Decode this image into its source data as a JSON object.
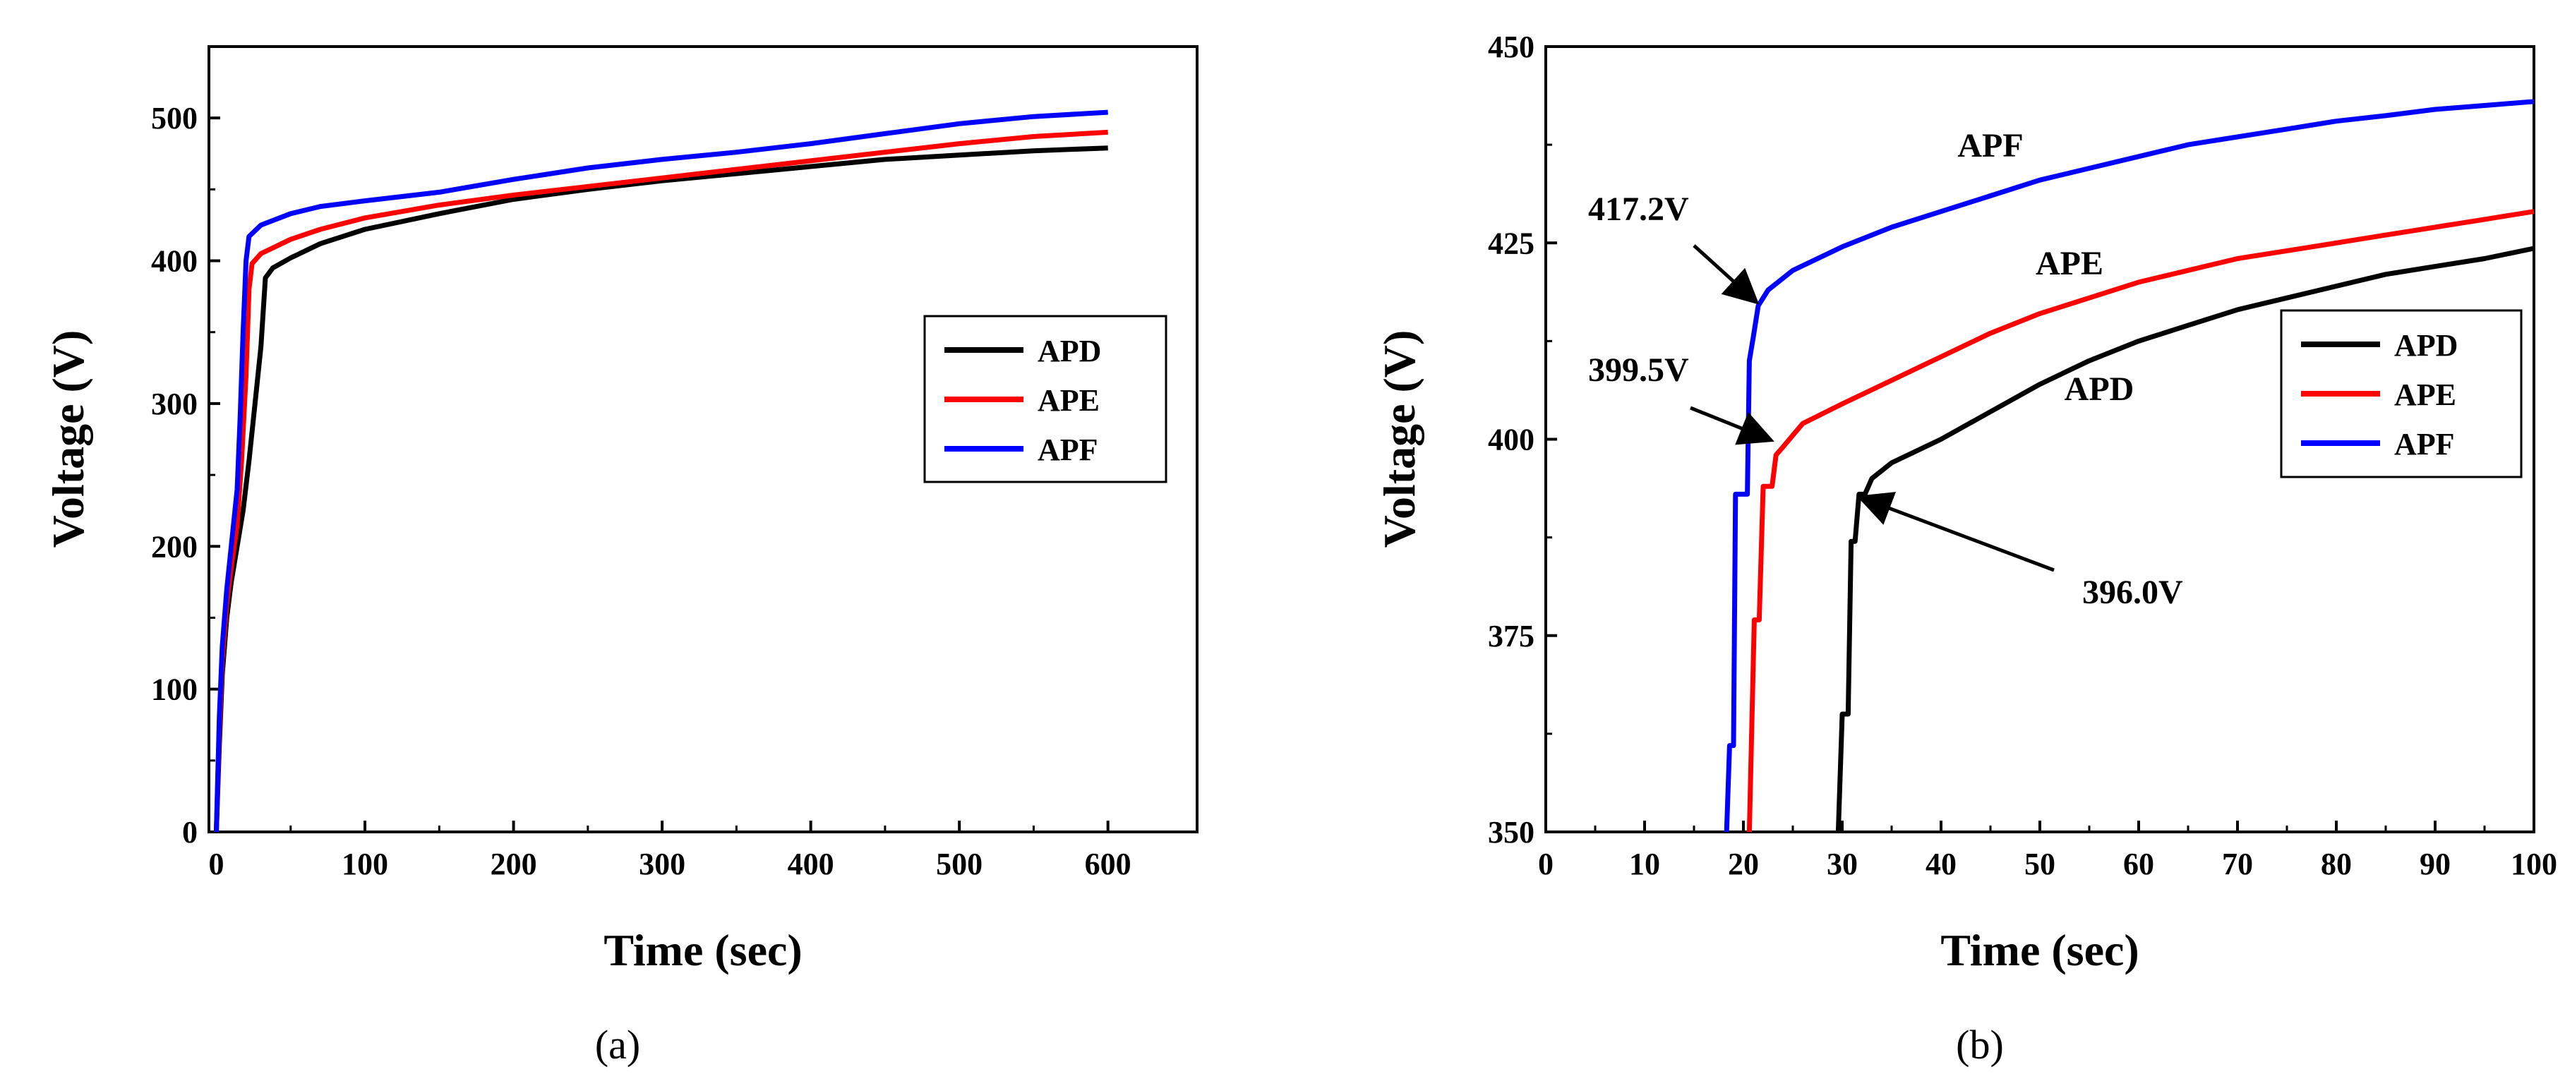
{
  "chart_data": [
    {
      "id": "a",
      "type": "line",
      "panel_label": "(a)",
      "title": "",
      "xlabel": "Time (sec)",
      "ylabel": "Voltage (V)",
      "xlim": [
        -5,
        660
      ],
      "ylim": [
        0,
        550
      ],
      "xticks": [
        0,
        100,
        200,
        300,
        400,
        500,
        600
      ],
      "yticks": [
        0,
        100,
        200,
        300,
        400,
        500
      ],
      "legend_position": "right-middle",
      "series": [
        {
          "name": "APD",
          "color": "#000000",
          "points": [
            [
              0,
              0
            ],
            [
              2,
              60
            ],
            [
              4,
              110
            ],
            [
              7,
              150
            ],
            [
              10,
              175
            ],
            [
              14,
              200
            ],
            [
              18,
              225
            ],
            [
              22,
              260
            ],
            [
              26,
              300
            ],
            [
              30,
              340
            ],
            [
              33,
              388
            ],
            [
              38,
              395
            ],
            [
              50,
              402
            ],
            [
              70,
              412
            ],
            [
              100,
              422
            ],
            [
              150,
              433
            ],
            [
              200,
              443
            ],
            [
              250,
              450
            ],
            [
              300,
              456
            ],
            [
              350,
              461
            ],
            [
              400,
              466
            ],
            [
              450,
              471
            ],
            [
              500,
              474
            ],
            [
              550,
              477
            ],
            [
              600,
              479
            ]
          ]
        },
        {
          "name": "APE",
          "color": "#ff0000",
          "points": [
            [
              0,
              0
            ],
            [
              2,
              70
            ],
            [
              4,
              120
            ],
            [
              7,
              160
            ],
            [
              10,
              185
            ],
            [
              14,
              215
            ],
            [
              17,
              260
            ],
            [
              20,
              320
            ],
            [
              22,
              380
            ],
            [
              24,
              398
            ],
            [
              30,
              405
            ],
            [
              50,
              415
            ],
            [
              70,
              422
            ],
            [
              100,
              430
            ],
            [
              150,
              439
            ],
            [
              200,
              446
            ],
            [
              250,
              452
            ],
            [
              300,
              458
            ],
            [
              350,
              464
            ],
            [
              400,
              470
            ],
            [
              450,
              476
            ],
            [
              500,
              482
            ],
            [
              550,
              487
            ],
            [
              600,
              490
            ]
          ]
        },
        {
          "name": "APF",
          "color": "#0000ff",
          "points": [
            [
              0,
              0
            ],
            [
              2,
              80
            ],
            [
              4,
              130
            ],
            [
              7,
              170
            ],
            [
              10,
              200
            ],
            [
              14,
              240
            ],
            [
              16,
              290
            ],
            [
              18,
              350
            ],
            [
              20,
              400
            ],
            [
              22,
              417
            ],
            [
              30,
              425
            ],
            [
              50,
              433
            ],
            [
              70,
              438
            ],
            [
              100,
              442
            ],
            [
              150,
              448
            ],
            [
              200,
              457
            ],
            [
              250,
              465
            ],
            [
              300,
              471
            ],
            [
              350,
              476
            ],
            [
              400,
              482
            ],
            [
              450,
              489
            ],
            [
              500,
              496
            ],
            [
              550,
              501
            ],
            [
              600,
              504
            ]
          ]
        }
      ]
    },
    {
      "id": "b",
      "type": "line",
      "panel_label": "(b)",
      "title": "",
      "xlabel": "Time (sec)",
      "ylabel": "Voltage (V)",
      "xlim": [
        0,
        100
      ],
      "ylim": [
        350,
        450
      ],
      "xticks": [
        0,
        10,
        20,
        30,
        40,
        50,
        60,
        70,
        80,
        90,
        100
      ],
      "yticks": [
        350,
        375,
        400,
        425,
        450
      ],
      "legend_position": "right-middle",
      "series": [
        {
          "name": "APD",
          "color": "#000000",
          "points": [
            [
              29.6,
              350
            ],
            [
              30,
              365
            ],
            [
              30.6,
              365
            ],
            [
              30.9,
              387
            ],
            [
              31.3,
              387
            ],
            [
              31.7,
              393
            ],
            [
              32.3,
              393
            ],
            [
              33,
              395
            ],
            [
              35,
              397
            ],
            [
              40,
              400
            ],
            [
              45,
              403.5
            ],
            [
              50,
              407
            ],
            [
              55,
              410
            ],
            [
              60,
              412.5
            ],
            [
              65,
              414.5
            ],
            [
              70,
              416.5
            ],
            [
              75,
              418
            ],
            [
              80,
              419.5
            ],
            [
              85,
              421
            ],
            [
              90,
              422
            ],
            [
              95,
              423
            ],
            [
              100,
              424.3
            ]
          ]
        },
        {
          "name": "APE",
          "color": "#ff0000",
          "points": [
            [
              20.6,
              350
            ],
            [
              21.1,
              377
            ],
            [
              21.6,
              377
            ],
            [
              22,
              394
            ],
            [
              22.9,
              394
            ],
            [
              23.3,
              398
            ],
            [
              24,
              399
            ],
            [
              26,
              402
            ],
            [
              30,
              404.5
            ],
            [
              35,
              407.5
            ],
            [
              40,
              410.5
            ],
            [
              45,
              413.5
            ],
            [
              50,
              416
            ],
            [
              55,
              418
            ],
            [
              60,
              420
            ],
            [
              65,
              421.5
            ],
            [
              70,
              423
            ],
            [
              75,
              424
            ],
            [
              80,
              425
            ],
            [
              85,
              426
            ],
            [
              90,
              427
            ],
            [
              95,
              428
            ],
            [
              100,
              429
            ]
          ]
        },
        {
          "name": "APF",
          "color": "#0000ff",
          "points": [
            [
              18.3,
              350
            ],
            [
              18.6,
              361
            ],
            [
              19,
              361
            ],
            [
              19.2,
              393
            ],
            [
              20.4,
              393
            ],
            [
              20.6,
              410
            ],
            [
              21,
              413
            ],
            [
              21.5,
              417
            ],
            [
              22.5,
              419
            ],
            [
              25,
              421.5
            ],
            [
              30,
              424.5
            ],
            [
              35,
              427
            ],
            [
              40,
              429
            ],
            [
              45,
              431
            ],
            [
              50,
              433
            ],
            [
              55,
              434.5
            ],
            [
              60,
              436
            ],
            [
              65,
              437.5
            ],
            [
              70,
              438.5
            ],
            [
              75,
              439.5
            ],
            [
              80,
              440.5
            ],
            [
              85,
              441.2
            ],
            [
              90,
              442
            ],
            [
              95,
              442.5
            ],
            [
              100,
              443
            ]
          ]
        }
      ],
      "annotations": [
        {
          "text": "417.2V",
          "x": 21.5,
          "y": 417.2
        },
        {
          "text": "399.5V",
          "x": 22.9,
          "y": 399.5
        },
        {
          "text": "396.0V",
          "x": 31.7,
          "y": 393
        }
      ],
      "series_text_labels": [
        {
          "text": "APF",
          "x": 45,
          "y": 436
        },
        {
          "text": "APE",
          "x": 53,
          "y": 421
        },
        {
          "text": "APD",
          "x": 56,
          "y": 405
        }
      ]
    }
  ]
}
